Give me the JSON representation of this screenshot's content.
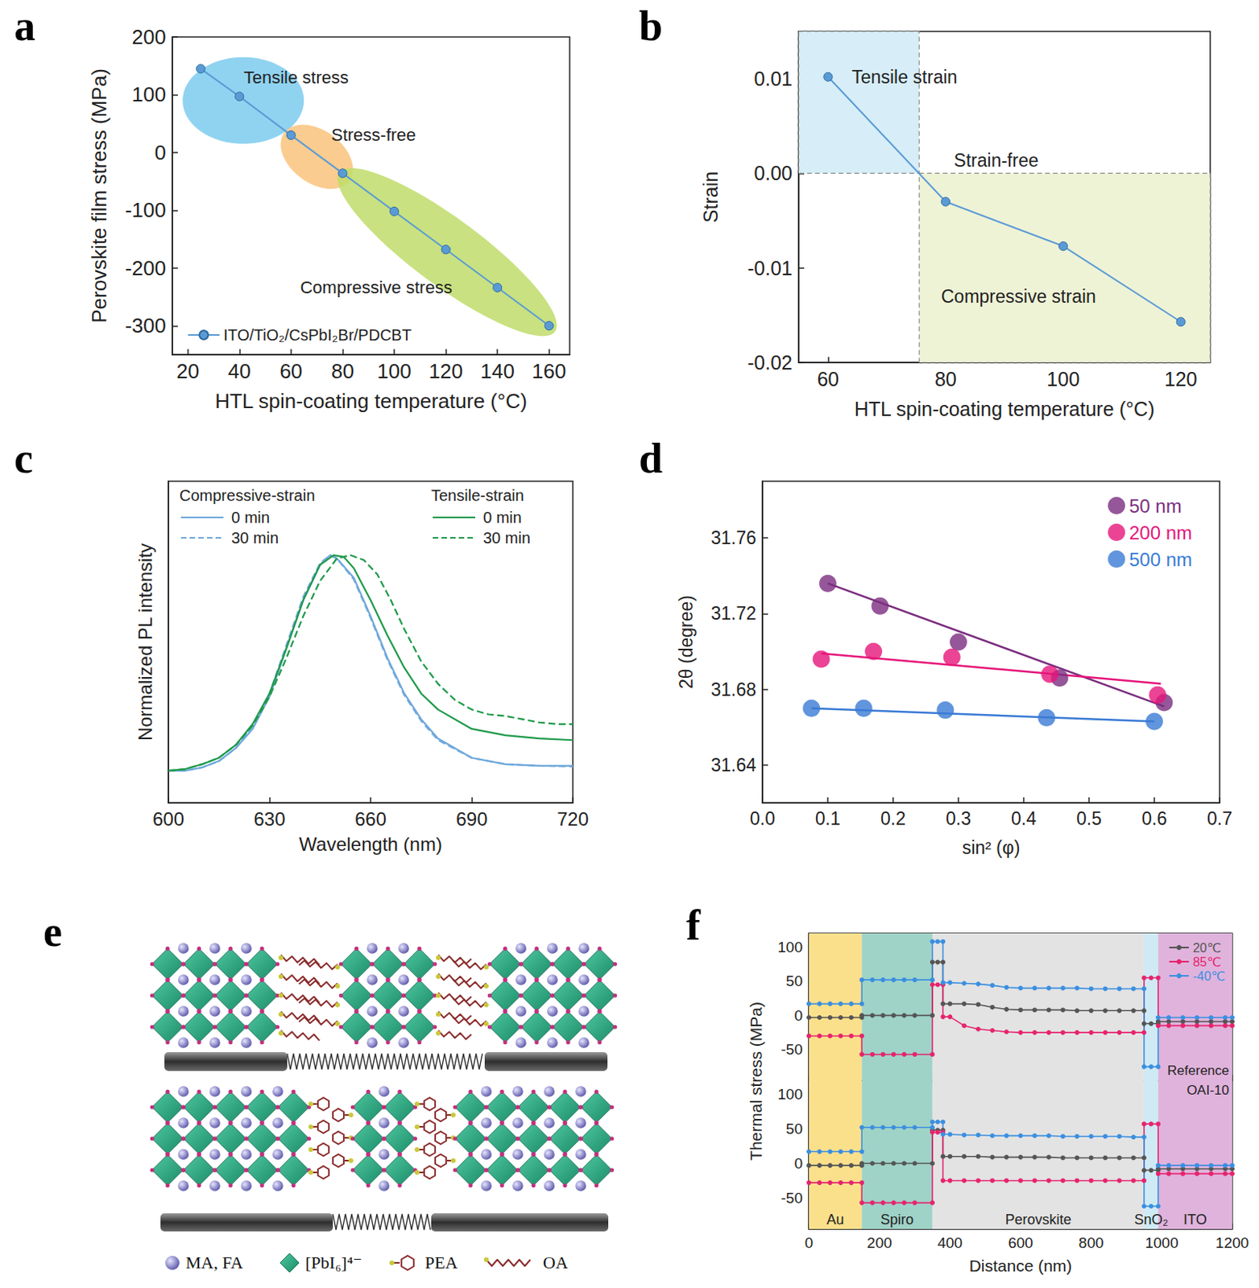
{
  "chart_data": [
    {
      "panel": "a",
      "type": "line",
      "xlabel": "HTL spin-coating temperature (°C)",
      "ylabel": "Perovskite film stress (MPa)",
      "xlim": [
        14,
        168
      ],
      "xticks": [
        20,
        40,
        60,
        80,
        100,
        120,
        140,
        160
      ],
      "ylim": [
        -350,
        200
      ],
      "yticks": [
        -300,
        -200,
        -100,
        0,
        100,
        200
      ],
      "legend": "lower left",
      "series": [
        {
          "name": "ITO/TiO₂/CsPbI₂Br/PDCBT",
          "color": "#5b9bd5",
          "marker": "circle",
          "x": [
            25,
            40,
            60,
            80,
            100,
            120,
            140,
            160
          ],
          "values": [
            145,
            97,
            30,
            -36,
            -102,
            -168,
            -234,
            -300
          ]
        }
      ],
      "regions": [
        {
          "color": "#7ccbee",
          "x": [
            18,
            65
          ],
          "y": [
            15,
            165
          ]
        },
        {
          "color": "#f9c37d",
          "x": [
            56,
            84
          ],
          "y": [
            -63,
            48
          ]
        },
        {
          "color": "#bfdc6a",
          "x": [
            78,
            163
          ],
          "y": [
            -318,
            -27
          ]
        }
      ],
      "annotations": [
        {
          "text": "Tensile stress",
          "x": 62,
          "y": 130
        },
        {
          "text": "Stress-free",
          "x": 92,
          "y": 30
        },
        {
          "text": "Compressive stress",
          "x": 93,
          "y": -233
        }
      ]
    },
    {
      "panel": "b",
      "type": "line",
      "xlabel": "HTL spin-coating temperature (°C)",
      "ylabel": "Strain",
      "xlim": [
        55,
        125
      ],
      "xticks": [
        60,
        80,
        100,
        120
      ],
      "ylim": [
        -0.02,
        0.015
      ],
      "yticks": [
        -0.02,
        -0.01,
        {
          "value": 0,
          "label": "0.00"
        },
        0.01
      ],
      "series": [
        {
          "color": "#5b9bd5",
          "marker": "circle",
          "x": [
            60,
            80,
            100,
            120
          ],
          "values": [
            0.0102,
            -0.003,
            -0.0077,
            -0.0157
          ]
        }
      ],
      "regions": [
        {
          "color": "#d7eef8",
          "x": [
            55,
            75.5
          ],
          "y": [
            0,
            0.015
          ]
        },
        {
          "color": "#eef3d6",
          "x": [
            75.5,
            125
          ],
          "y": [
            -0.02,
            0
          ]
        }
      ],
      "annotations": [
        {
          "text": "Tensile strain",
          "x": 73,
          "y": 0.0102
        },
        {
          "text": "Strain-free",
          "x": 88.6,
          "y": 0.0014
        },
        {
          "text": "Compressive strain",
          "x": 92.4,
          "y": -0.013
        }
      ]
    },
    {
      "panel": "c",
      "type": "line",
      "xlabel": "Wavelength (nm)",
      "ylabel": "Normalized PL intensity",
      "xlim": [
        600,
        720
      ],
      "xticks": [
        600,
        630,
        660,
        690,
        720
      ],
      "ylim": [
        0,
        1
      ],
      "tick_labels": "x",
      "legend": "upper left",
      "series": [
        {
          "name": "0 min",
          "group": "Compressive-strain",
          "color": "#6fa8dc",
          "line_style": "solid",
          "x": [
            600,
            605,
            610,
            615,
            620,
            625,
            630,
            635,
            640,
            645,
            648,
            650,
            655,
            660,
            665,
            670,
            675,
            680,
            690,
            700,
            710,
            720
          ],
          "values": [
            0.1,
            0.1,
            0.11,
            0.13,
            0.17,
            0.23,
            0.33,
            0.48,
            0.63,
            0.74,
            0.77,
            0.76,
            0.7,
            0.58,
            0.45,
            0.34,
            0.26,
            0.2,
            0.14,
            0.12,
            0.115,
            0.115
          ]
        },
        {
          "name": "30 min",
          "group": "Compressive-strain",
          "color": "#6fa8dc",
          "line_style": "dashed",
          "x": [
            600,
            605,
            610,
            615,
            620,
            625,
            630,
            635,
            640,
            645,
            648,
            650,
            655,
            660,
            665,
            670,
            675,
            680,
            690,
            700,
            710,
            720
          ],
          "values": [
            0.1,
            0.1,
            0.11,
            0.13,
            0.17,
            0.24,
            0.34,
            0.49,
            0.64,
            0.745,
            0.77,
            0.76,
            0.695,
            0.575,
            0.445,
            0.335,
            0.255,
            0.195,
            0.14,
            0.12,
            0.115,
            0.113
          ]
        },
        {
          "name": "0 min",
          "group": "Tensile-strain",
          "color": "#1f9a4a",
          "line_style": "solid",
          "x": [
            600,
            605,
            610,
            615,
            620,
            625,
            630,
            635,
            640,
            645,
            649,
            652,
            655,
            660,
            665,
            670,
            675,
            680,
            690,
            700,
            710,
            720
          ],
          "values": [
            0.1,
            0.105,
            0.12,
            0.14,
            0.18,
            0.245,
            0.34,
            0.48,
            0.63,
            0.74,
            0.77,
            0.765,
            0.73,
            0.63,
            0.52,
            0.42,
            0.34,
            0.29,
            0.23,
            0.21,
            0.2,
            0.195
          ]
        },
        {
          "name": "30 min",
          "group": "Tensile-strain",
          "color": "#1f9a4a",
          "line_style": "dashed",
          "x": [
            600,
            605,
            610,
            615,
            620,
            625,
            630,
            635,
            640,
            645,
            650,
            654,
            658,
            662,
            666,
            670,
            675,
            680,
            685,
            690,
            695,
            700,
            705,
            710,
            715,
            720
          ],
          "values": [
            0.1,
            0.105,
            0.12,
            0.14,
            0.18,
            0.24,
            0.33,
            0.45,
            0.58,
            0.69,
            0.76,
            0.77,
            0.755,
            0.71,
            0.63,
            0.54,
            0.44,
            0.37,
            0.32,
            0.29,
            0.275,
            0.27,
            0.26,
            0.25,
            0.245,
            0.245
          ]
        }
      ]
    },
    {
      "panel": "d",
      "type": "scatter",
      "xlabel": "sin² (φ)",
      "ylabel": "2θ (degree)",
      "xlim": [
        0,
        0.7
      ],
      "xticks": [
        {
          "value": 0,
          "label": "0.0"
        },
        0.1,
        0.2,
        0.3,
        0.4,
        0.5,
        0.6,
        0.7
      ],
      "ylim": [
        31.62,
        31.79
      ],
      "yticks": [
        31.64,
        31.68,
        31.72,
        31.76
      ],
      "legend": "upper right",
      "series": [
        {
          "name": "50 nm",
          "color": "#7b2d7f",
          "marker": "circle",
          "x": [
            0.1,
            0.18,
            0.3,
            0.455,
            0.615
          ],
          "values": [
            31.736,
            31.724,
            31.705,
            31.686,
            31.673
          ],
          "fit": {
            "x": [
              0.1,
              0.615
            ],
            "values": [
              31.736,
              31.671
            ]
          }
        },
        {
          "name": "200 nm",
          "color": "#e6157a",
          "marker": "circle",
          "x": [
            0.09,
            0.17,
            0.29,
            0.44,
            0.605
          ],
          "values": [
            31.696,
            31.7,
            31.697,
            31.688,
            31.677
          ],
          "fit": {
            "x": [
              0.09,
              0.61
            ],
            "values": [
              31.699,
              31.683
            ]
          }
        },
        {
          "name": "500 nm",
          "color": "#3a7bd5",
          "marker": "circle",
          "x": [
            0.075,
            0.155,
            0.28,
            0.435,
            0.6
          ],
          "values": [
            31.67,
            31.67,
            31.669,
            31.665,
            31.663
          ],
          "fit": {
            "x": [
              0.075,
              0.6
            ],
            "values": [
              31.67,
              31.663
            ]
          }
        }
      ]
    },
    {
      "panel": "f",
      "type": "line",
      "xlabel": "Distance (nm)",
      "ylabel": "Thermal stress (MPa)",
      "xlim": [
        0,
        1200
      ],
      "xticks": [
        0,
        200,
        400,
        600,
        800,
        1000,
        1200
      ],
      "ylim": [
        -95,
        120
      ],
      "yticks": [
        -50,
        0,
        50,
        100
      ],
      "legend": "upper right",
      "layers": [
        {
          "label": "Au",
          "x": [
            0,
            150
          ],
          "color": "#fbe08c"
        },
        {
          "label": "Spiro",
          "x": [
            150,
            350
          ],
          "color": "#9fd3c7"
        },
        {
          "label": "Perovskite",
          "x": [
            350,
            950
          ],
          "color": "#e3e3e3"
        },
        {
          "label": "SnO₂",
          "x": [
            950,
            990
          ],
          "color": "#cfeaf5"
        },
        {
          "label": "ITO",
          "x": [
            990,
            1200
          ],
          "color": "#e0b3dc"
        }
      ],
      "x": [
        0,
        30,
        60,
        90,
        120,
        150,
        150,
        180,
        210,
        240,
        270,
        300,
        350,
        350,
        365,
        380,
        380,
        400,
        440,
        480,
        520,
        560,
        600,
        640,
        680,
        720,
        760,
        800,
        840,
        880,
        920,
        950,
        950,
        970,
        990,
        990,
        1020,
        1060,
        1100,
        1140,
        1180,
        1200
      ],
      "subplots": [
        {
          "label": "Reference",
          "series": [
            {
              "name": "20℃",
              "color": "#555555",
              "marker": "circle",
              "values": [
                -3,
                -3,
                -3,
                -3,
                -3,
                -3,
                0,
                0,
                0,
                0,
                0,
                0,
                0,
                78,
                78,
                78,
                17,
                17,
                17,
                16,
                12,
                9,
                8,
                8,
                8,
                8,
                7,
                7,
                7,
                7,
                7,
                7,
                -12,
                -12,
                -12,
                -9,
                -9,
                -9,
                -9,
                -9,
                -9,
                -9
              ]
            },
            {
              "name": "85℃",
              "color": "#e6246e",
              "marker": "circle",
              "values": [
                -30,
                -30,
                -30,
                -30,
                -30,
                -30,
                -57,
                -57,
                -57,
                -57,
                -57,
                -57,
                -57,
                45,
                45,
                45,
                -2,
                -2,
                -15,
                -20,
                -22,
                -24,
                -25,
                -25,
                -25,
                -25,
                -25,
                -25,
                -25,
                -25,
                -25,
                -25,
                55,
                55,
                55,
                -15,
                -15,
                -15,
                -15,
                -15,
                -15,
                -15
              ]
            },
            {
              "name": "-40℃",
              "color": "#3b8fe0",
              "marker": "circle",
              "values": [
                17,
                17,
                17,
                17,
                17,
                17,
                52,
                52,
                52,
                52,
                52,
                52,
                52,
                108,
                108,
                108,
                48,
                48,
                47,
                46,
                44,
                41,
                40,
                40,
                40,
                40,
                40,
                39,
                39,
                39,
                39,
                39,
                -75,
                -75,
                -75,
                -3,
                -3,
                -3,
                -3,
                -3,
                -3,
                -3
              ]
            }
          ]
        },
        {
          "label": "OAI-10",
          "series": [
            {
              "name": "20℃",
              "color": "#555555",
              "marker": "circle",
              "values": [
                -3,
                -3,
                -3,
                -3,
                -3,
                -3,
                0,
                0,
                0,
                0,
                0,
                0,
                0,
                48,
                48,
                48,
                10,
                10,
                10,
                10,
                9,
                9,
                9,
                9,
                9,
                8,
                8,
                8,
                8,
                8,
                8,
                8,
                -10,
                -10,
                -10,
                -8,
                -8,
                -8,
                -8,
                -8,
                -8,
                -8
              ]
            },
            {
              "name": "85℃",
              "color": "#e6246e",
              "marker": "circle",
              "values": [
                -28,
                -28,
                -28,
                -28,
                -28,
                -28,
                -57,
                -57,
                -57,
                -57,
                -57,
                -57,
                -57,
                45,
                45,
                45,
                -25,
                -25,
                -25,
                -25,
                -25,
                -25,
                -25,
                -25,
                -25,
                -25,
                -25,
                -25,
                -25,
                -25,
                -25,
                -25,
                57,
                57,
                57,
                -15,
                -15,
                -15,
                -15,
                -15,
                -15,
                -15
              ]
            },
            {
              "name": "-40℃",
              "color": "#3b8fe0",
              "marker": "circle",
              "values": [
                17,
                17,
                17,
                17,
                17,
                17,
                52,
                52,
                52,
                52,
                52,
                52,
                52,
                60,
                60,
                60,
                42,
                42,
                41,
                41,
                40,
                40,
                40,
                40,
                40,
                39,
                39,
                39,
                39,
                39,
                38,
                38,
                -62,
                -62,
                -62,
                -3,
                -3,
                -3,
                -3,
                -3,
                -3,
                -3
              ]
            }
          ]
        }
      ]
    }
  ],
  "diagram": {
    "panel": "e",
    "legend": [
      {
        "label": "MA, FA"
      },
      {
        "label": "[PbI₆]⁴⁻"
      },
      {
        "label": "PEA"
      },
      {
        "label": "OA"
      }
    ]
  }
}
